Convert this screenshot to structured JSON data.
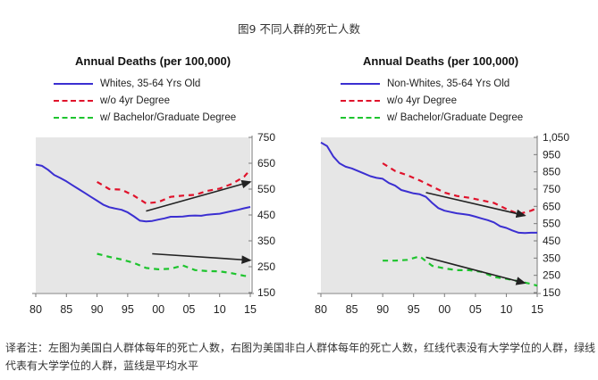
{
  "figure_title": "图9 不同人群的死亡人数",
  "caption": "译者注：左图为美国白人群体每年的死亡人数，右图为美国非白人群体每年的死亡人数，红线代表没有大学学位的人群，绿线代表有大学学位的人群，蓝线是平均水平",
  "colors": {
    "blue": "#3b2fd1",
    "red": "#e0122b",
    "green": "#1ec42e",
    "axis": "#7a7a7a",
    "shade": "#e6e6e6"
  },
  "chart_data": [
    {
      "type": "line",
      "title": "Annual Deaths (per 100,000)",
      "legend": [
        "Whites, 35-64 Yrs Old",
        "w/o 4yr Degree",
        "w/ Bachelor/Graduate Degree"
      ],
      "x_ticks": [
        "80",
        "85",
        "90",
        "95",
        "00",
        "05",
        "10",
        "15"
      ],
      "y_ticks": [
        "750",
        "650",
        "550",
        "450",
        "350",
        "250",
        "150"
      ],
      "xlim": [
        1980,
        2015
      ],
      "ylim": [
        150,
        750
      ],
      "series": [
        {
          "name": "Whites, 35-64 Yrs Old",
          "style": "solid",
          "color": "blue",
          "x": [
            1980,
            1981,
            1982,
            1983,
            1984,
            1985,
            1986,
            1987,
            1988,
            1989,
            1990,
            1991,
            1992,
            1993,
            1994,
            1995,
            1996,
            1997,
            1998,
            1999,
            2000,
            2001,
            2002,
            2003,
            2004,
            2005,
            2006,
            2007,
            2008,
            2009,
            2010,
            2011,
            2012,
            2013,
            2014,
            2015
          ],
          "y": [
            645,
            640,
            625,
            605,
            593,
            580,
            565,
            550,
            535,
            520,
            505,
            490,
            480,
            475,
            470,
            460,
            445,
            428,
            425,
            427,
            432,
            437,
            443,
            443,
            444,
            447,
            448,
            447,
            451,
            453,
            455,
            460,
            465,
            470,
            476,
            481
          ]
        },
        {
          "name": "w/o 4yr Degree",
          "style": "dashed",
          "color": "red",
          "x": [
            1990,
            1992,
            1994,
            1996,
            1998,
            2000,
            2002,
            2004,
            2006,
            2008,
            2010,
            2012,
            2014,
            2015
          ],
          "y": [
            578,
            550,
            548,
            525,
            495,
            500,
            520,
            525,
            528,
            543,
            552,
            570,
            598,
            625
          ]
        },
        {
          "name": "w/ Bachelor/Graduate Degree",
          "style": "dashed",
          "color": "green",
          "x": [
            1990,
            1992,
            1994,
            1996,
            1998,
            2000,
            2002,
            2004,
            2006,
            2008,
            2010,
            2012,
            2014,
            2015
          ],
          "y": [
            300,
            288,
            278,
            265,
            245,
            240,
            242,
            255,
            237,
            233,
            232,
            225,
            215,
            213
          ]
        }
      ],
      "trend_arrows": [
        {
          "from": [
            1998,
            465
          ],
          "to": [
            2015,
            578
          ]
        },
        {
          "from": [
            1999,
            300
          ],
          "to": [
            2015,
            275
          ]
        }
      ]
    },
    {
      "type": "line",
      "title": "Annual Deaths (per 100,000)",
      "legend": [
        "Non-Whites, 35-64 Yrs Old",
        "w/o 4yr Degree",
        "w/ Bachelor/Graduate Degree"
      ],
      "x_ticks": [
        "80",
        "85",
        "90",
        "95",
        "00",
        "05",
        "10",
        "15"
      ],
      "y_ticks": [
        "1,050",
        "950",
        "850",
        "750",
        "650",
        "550",
        "450",
        "350",
        "250",
        "150"
      ],
      "xlim": [
        1980,
        2015
      ],
      "ylim": [
        150,
        1050
      ],
      "series": [
        {
          "name": "Non-Whites, 35-64 Yrs Old",
          "style": "solid",
          "color": "blue",
          "x": [
            1980,
            1981,
            1982,
            1983,
            1984,
            1985,
            1986,
            1987,
            1988,
            1989,
            1990,
            1991,
            1992,
            1993,
            1994,
            1995,
            1996,
            1997,
            1998,
            1999,
            2000,
            2001,
            2002,
            2003,
            2004,
            2005,
            2006,
            2007,
            2008,
            2009,
            2010,
            2011,
            2012,
            2013,
            2014,
            2015
          ],
          "y": [
            1020,
            1000,
            940,
            900,
            880,
            870,
            855,
            840,
            825,
            815,
            810,
            785,
            770,
            745,
            735,
            725,
            720,
            705,
            670,
            640,
            625,
            617,
            610,
            605,
            600,
            590,
            580,
            570,
            557,
            535,
            525,
            510,
            497,
            495,
            497,
            497
          ]
        },
        {
          "name": "w/o 4yr Degree",
          "style": "dashed",
          "color": "red",
          "x": [
            1990,
            1992,
            1994,
            1996,
            1998,
            2000,
            2002,
            2004,
            2006,
            2008,
            2010,
            2012,
            2014,
            2015
          ],
          "y": [
            900,
            855,
            830,
            800,
            765,
            730,
            710,
            700,
            685,
            670,
            635,
            605,
            625,
            640
          ]
        },
        {
          "name": "w/ Bachelor/Graduate Degree",
          "style": "dashed",
          "color": "green",
          "x": [
            1990,
            1992,
            1994,
            1996,
            1998,
            2000,
            2002,
            2004,
            2006,
            2008,
            2010,
            2012,
            2014,
            2015
          ],
          "y": [
            335,
            335,
            340,
            360,
            305,
            290,
            280,
            280,
            270,
            240,
            230,
            215,
            200,
            190
          ]
        }
      ],
      "trend_arrows": [
        {
          "from": [
            1997,
            730
          ],
          "to": [
            2013,
            597
          ]
        },
        {
          "from": [
            1997,
            355
          ],
          "to": [
            2013,
            205
          ]
        }
      ]
    }
  ]
}
